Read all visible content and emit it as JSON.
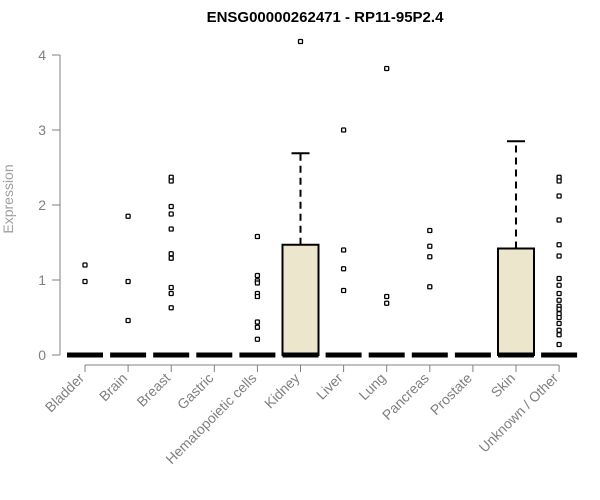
{
  "chart_data": {
    "type": "boxplot",
    "title": "ENSG00000262471 - RP11-95P2.4",
    "ylabel": "Expression",
    "xlabel": "",
    "ylim": [
      0,
      4.2
    ],
    "yticks": [
      0,
      1,
      2,
      3,
      4
    ],
    "box_fill": "#ece6cc",
    "categories": [
      "Bladder",
      "Brain",
      "Breast",
      "Gastric",
      "Hematopoietic cells",
      "Kidney",
      "Liver",
      "Lung",
      "Pancreas",
      "Prostate",
      "Skin",
      "Unknown / Other"
    ],
    "boxes": [
      {
        "category": "Bladder",
        "q1": 0,
        "median": 0,
        "q3": 0,
        "whisker_low": 0,
        "whisker_high": 0,
        "outliers": [
          1.2,
          0.98
        ]
      },
      {
        "category": "Brain",
        "q1": 0,
        "median": 0,
        "q3": 0,
        "whisker_low": 0,
        "whisker_high": 0,
        "outliers": [
          1.85,
          0.98,
          0.46
        ]
      },
      {
        "category": "Breast",
        "q1": 0,
        "median": 0,
        "q3": 0,
        "whisker_low": 0,
        "whisker_high": 0,
        "outliers": [
          2.37,
          2.32,
          1.98,
          1.88,
          1.68,
          1.35,
          1.29,
          0.9,
          0.82,
          0.63
        ]
      },
      {
        "category": "Gastric",
        "q1": 0,
        "median": 0,
        "q3": 0,
        "whisker_low": 0,
        "whisker_high": 0,
        "outliers": []
      },
      {
        "category": "Hematopoietic cells",
        "q1": 0,
        "median": 0,
        "q3": 0,
        "whisker_low": 0,
        "whisker_high": 0,
        "outliers": [
          1.58,
          1.06,
          0.99,
          0.96,
          0.82,
          0.78,
          0.44,
          0.37,
          0.21
        ]
      },
      {
        "category": "Kidney",
        "q1": 0,
        "median": 0,
        "q3": 1.47,
        "whisker_low": 0,
        "whisker_high": 2.69,
        "outliers": [
          4.18
        ]
      },
      {
        "category": "Liver",
        "q1": 0,
        "median": 0,
        "q3": 0,
        "whisker_low": 0,
        "whisker_high": 0,
        "outliers": [
          3.0,
          1.4,
          1.15,
          0.86
        ]
      },
      {
        "category": "Lung",
        "q1": 0,
        "median": 0,
        "q3": 0,
        "whisker_low": 0,
        "whisker_high": 0,
        "outliers": [
          3.82,
          0.78,
          0.69
        ]
      },
      {
        "category": "Pancreas",
        "q1": 0,
        "median": 0,
        "q3": 0,
        "whisker_low": 0,
        "whisker_high": 0,
        "outliers": [
          1.66,
          1.45,
          1.31,
          0.91
        ]
      },
      {
        "category": "Prostate",
        "q1": 0,
        "median": 0,
        "q3": 0,
        "whisker_low": 0,
        "whisker_high": 0,
        "outliers": []
      },
      {
        "category": "Skin",
        "q1": 0,
        "median": 0,
        "q3": 1.42,
        "whisker_low": 0,
        "whisker_high": 2.85,
        "outliers": []
      },
      {
        "category": "Unknown / Other",
        "q1": 0,
        "median": 0,
        "q3": 0,
        "whisker_low": 0,
        "whisker_high": 0,
        "outliers": [
          2.37,
          2.32,
          2.12,
          1.8,
          1.47,
          1.32,
          1.02,
          0.93,
          0.82,
          0.73,
          0.65,
          0.61,
          0.55,
          0.5,
          0.42,
          0.33,
          0.27,
          0.14
        ]
      }
    ]
  }
}
